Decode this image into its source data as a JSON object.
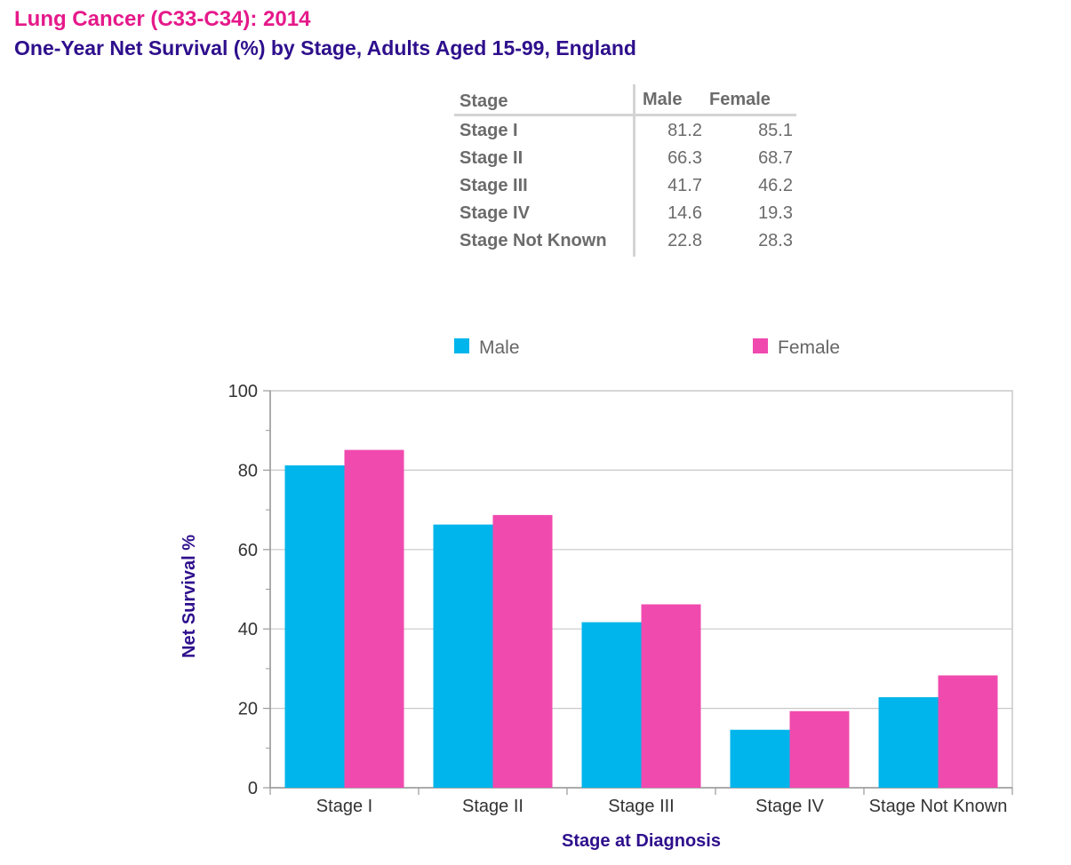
{
  "title": "Lung Cancer (C33-C34): 2014",
  "subtitle": "One-Year Net Survival (%) by Stage, Adults Aged 15-99, England",
  "table": {
    "headers": [
      "Stage",
      "Male",
      "Female"
    ],
    "rows": [
      {
        "stage": "Stage I",
        "male": "81.2",
        "female": "85.1"
      },
      {
        "stage": "Stage II",
        "male": "66.3",
        "female": "68.7"
      },
      {
        "stage": "Stage III",
        "male": "41.7",
        "female": "46.2"
      },
      {
        "stage": "Stage IV",
        "male": "14.6",
        "female": "19.3"
      },
      {
        "stage": "Stage Not Known",
        "male": "22.8",
        "female": "28.3"
      }
    ]
  },
  "colors": {
    "title": "#E5198A",
    "subtitle": "#2E0F8C",
    "male": "#00B5EB",
    "female": "#F04AAE",
    "axis_title": "#2E0F8C"
  },
  "chart_data": {
    "type": "bar",
    "categories": [
      "Stage I",
      "Stage II",
      "Stage III",
      "Stage IV",
      "Stage Not Known"
    ],
    "series": [
      {
        "name": "Male",
        "values": [
          81.2,
          66.3,
          41.7,
          14.6,
          22.8
        ]
      },
      {
        "name": "Female",
        "values": [
          85.1,
          68.7,
          46.2,
          19.3,
          28.3
        ]
      }
    ],
    "xlabel": "Stage at Diagnosis",
    "ylabel": "Net Survival %",
    "ylim": [
      0,
      100
    ],
    "yticks": [
      0,
      20,
      40,
      60,
      80,
      100
    ],
    "grid": true,
    "legend": "top"
  }
}
